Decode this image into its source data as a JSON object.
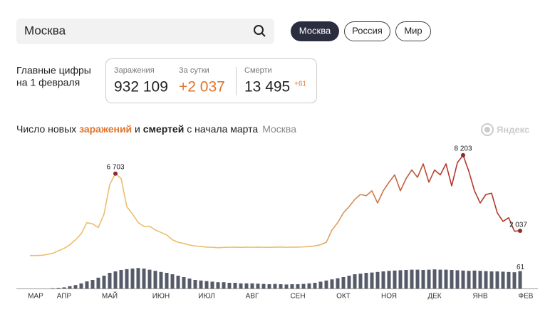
{
  "search": {
    "query": "Москва"
  },
  "tabs": [
    "Москва",
    "Россия",
    "Мир"
  ],
  "summary": {
    "heading": [
      "Главные цифры",
      "на 1 февраля"
    ],
    "stats": [
      {
        "label": "Заражения",
        "value": "932 109"
      },
      {
        "label": "За сутки",
        "value": "+2 037"
      },
      {
        "label": "Смерти",
        "value": "13 495",
        "delta": "+61"
      }
    ]
  },
  "logo": "Яндекс",
  "chart_data": {
    "type": "line",
    "title": [
      "Число новых ",
      "заражений",
      " и ",
      "смертей",
      " с начала марта"
    ],
    "subtitle": "Москва",
    "categories": [
      null,
      "МАР",
      null,
      null,
      null,
      null,
      "АПР",
      null,
      null,
      null,
      null,
      null,
      null,
      null,
      "МАЙ",
      null,
      null,
      null,
      null,
      null,
      null,
      null,
      null,
      "ИЮН",
      null,
      null,
      null,
      null,
      null,
      null,
      null,
      "ИЮЛ",
      null,
      null,
      null,
      null,
      null,
      null,
      null,
      "АВГ",
      null,
      null,
      null,
      null,
      null,
      null,
      null,
      "СЕН",
      null,
      null,
      null,
      null,
      null,
      null,
      null,
      "ОКТ",
      null,
      null,
      null,
      null,
      null,
      null,
      null,
      "НОЯ",
      null,
      null,
      null,
      null,
      null,
      null,
      null,
      "ДЕК",
      null,
      null,
      null,
      null,
      null,
      null,
      null,
      "ЯНВ",
      null,
      null,
      null,
      null,
      null,
      null,
      null,
      "ФЕВ"
    ],
    "series": [
      {
        "name": "заражения",
        "gradient": [
          "#ebbe6c",
          "#b5382c"
        ],
        "values": [
          10,
          20,
          30,
          100,
          200,
          400,
          600,
          900,
          1300,
          1800,
          2700,
          2600,
          2300,
          3400,
          5800,
          6703,
          6300,
          4000,
          3400,
          2700,
          2400,
          2400,
          2100,
          1900,
          1700,
          1300,
          1100,
          1000,
          870,
          800,
          750,
          700,
          690,
          650,
          680,
          690,
          700,
          680,
          700,
          690,
          700,
          690,
          680,
          700,
          710,
          690,
          700,
          700,
          720,
          750,
          800,
          900,
          1100,
          2100,
          2700,
          3500,
          4000,
          4600,
          5000,
          4900,
          5300,
          4300,
          5300,
          6000,
          6600,
          5300,
          6300,
          7000,
          6400,
          7500,
          6000,
          7000,
          6600,
          7500,
          5700,
          7600,
          8203,
          6900,
          5300,
          4300,
          5000,
          5100,
          3500,
          2800,
          3100,
          2000,
          2037,
          null
        ],
        "value_labels": [
          null,
          null,
          null,
          null,
          null,
          null,
          null,
          null,
          null,
          null,
          null,
          null,
          null,
          null,
          null,
          "6 703",
          null,
          null,
          null,
          null,
          null,
          null,
          null,
          null,
          null,
          null,
          null,
          null,
          null,
          null,
          null,
          null,
          null,
          null,
          null,
          null,
          null,
          null,
          null,
          null,
          null,
          null,
          null,
          null,
          null,
          null,
          null,
          null,
          null,
          null,
          null,
          null,
          null,
          null,
          null,
          null,
          null,
          null,
          null,
          null,
          null,
          null,
          null,
          null,
          null,
          null,
          null,
          null,
          null,
          null,
          null,
          null,
          null,
          null,
          null,
          null,
          "8 203",
          null,
          null,
          null,
          null,
          null,
          null,
          null,
          null,
          null,
          "2 037",
          null
        ]
      },
      {
        "name": "смерти",
        "color": "#555b68",
        "values": [
          0,
          0,
          0,
          0,
          1,
          2,
          4,
          8,
          12,
          18,
          25,
          30,
          38,
          45,
          55,
          60,
          65,
          68,
          70,
          72,
          70,
          66,
          62,
          58,
          55,
          50,
          45,
          40,
          35,
          30,
          28,
          26,
          24,
          22,
          22,
          20,
          20,
          18,
          18,
          18,
          17,
          16,
          15,
          16,
          15,
          14,
          15,
          15,
          16,
          18,
          20,
          24,
          28,
          32,
          36,
          40,
          45,
          50,
          52,
          55,
          56,
          58,
          60,
          62,
          63,
          64,
          65,
          66,
          66,
          65,
          66,
          67,
          66,
          66,
          65,
          64,
          63,
          62,
          63,
          62,
          61,
          60,
          60,
          59,
          58,
          57,
          61,
          null
        ],
        "value_labels": [
          null,
          null,
          null,
          null,
          null,
          null,
          null,
          null,
          null,
          null,
          null,
          null,
          null,
          null,
          null,
          null,
          null,
          null,
          null,
          null,
          null,
          null,
          null,
          null,
          null,
          null,
          null,
          null,
          null,
          null,
          null,
          null,
          null,
          null,
          null,
          null,
          null,
          null,
          null,
          null,
          null,
          null,
          null,
          null,
          null,
          null,
          null,
          null,
          null,
          null,
          null,
          null,
          null,
          null,
          null,
          null,
          null,
          null,
          null,
          null,
          null,
          null,
          null,
          null,
          null,
          null,
          null,
          null,
          null,
          null,
          null,
          null,
          null,
          null,
          null,
          null,
          null,
          null,
          null,
          null,
          null,
          null,
          null,
          null,
          null,
          null,
          "61",
          null
        ]
      }
    ]
  }
}
